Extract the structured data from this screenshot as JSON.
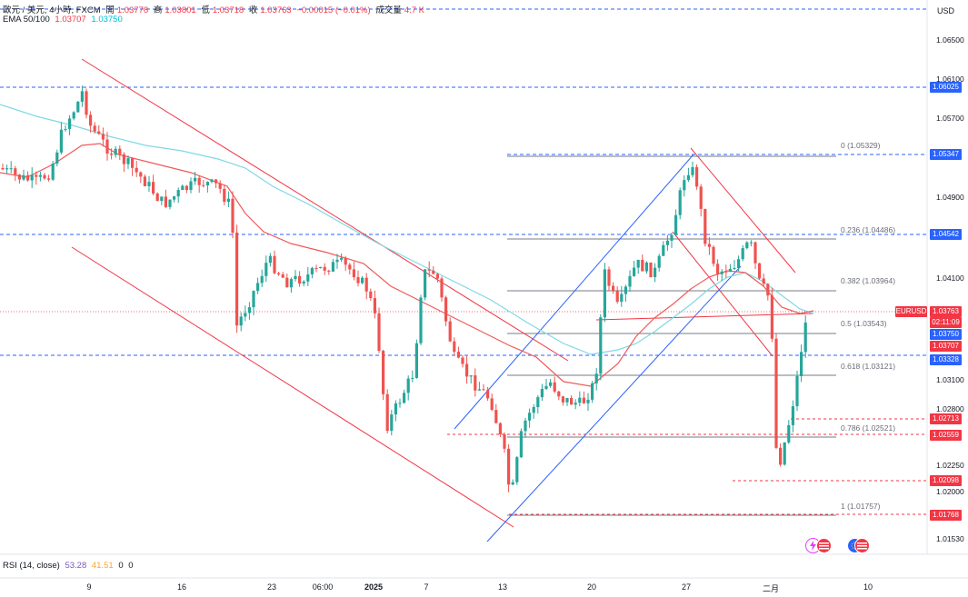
{
  "header": {
    "symbol": "歐元 / 美元, 4小時, FXCM",
    "open_label": "開",
    "open_value": "1.03778",
    "high_label": "高",
    "high_value": "1.03801",
    "low_label": "低",
    "low_value": "1.03718",
    "close_label": "收",
    "close_value": "1.03763",
    "change_value": "−0.00015 (−0.01%)",
    "volume_label": "成交量",
    "volume_value": "4.7 K",
    "ema_label": "EMA 50/100",
    "ema_50": "1.03707",
    "ema_100": "1.03750",
    "currency": "USD"
  },
  "price_axis": {
    "labels": [
      "1.06500",
      "1.06100",
      "1.05700",
      "1.04900",
      "1.04100",
      "1.03100",
      "1.02800",
      "1.02250",
      "1.02000",
      "1.01530"
    ]
  },
  "price_tags": [
    {
      "label": "1.06025",
      "color": "#2962ff"
    },
    {
      "label": "1.05347",
      "color": "#2962ff"
    },
    {
      "label": "1.04542",
      "color": "#2962ff"
    },
    {
      "label": "EURUSD",
      "color": "#f23645"
    },
    {
      "label": "1.03763",
      "color": "#f23645"
    },
    {
      "label": "02:11:09",
      "color": "#f23645"
    },
    {
      "label": "1.03750",
      "color": "#2962ff"
    },
    {
      "label": "1.03707",
      "color": "#f23645"
    },
    {
      "label": "1.03328",
      "color": "#2962ff"
    },
    {
      "label": "1.02713",
      "color": "#f23645"
    },
    {
      "label": "1.02559",
      "color": "#f23645"
    },
    {
      "label": "1.02098",
      "color": "#f23645"
    },
    {
      "label": "1.01768",
      "color": "#f23645"
    }
  ],
  "fib_levels": [
    {
      "label": "0 (1.05329)"
    },
    {
      "label": "0.236 (1.04486)"
    },
    {
      "label": "0.382 (1.03964)"
    },
    {
      "label": "0.5 (1.03543)"
    },
    {
      "label": "0.618 (1.03121)"
    },
    {
      "label": "0.786 (1.02521)"
    },
    {
      "label": "1 (1.01757)"
    }
  ],
  "rsi": {
    "label": "RSI (14, close)",
    "value1": "53.28",
    "value2": "41.51",
    "value3": "0",
    "value4": "0"
  },
  "time_axis": {
    "labels": [
      "9",
      "16",
      "23",
      "06:00",
      "2025",
      "7",
      "13",
      "20",
      "27",
      "二月",
      "10"
    ]
  },
  "colors": {
    "candle_up": "#26a69a",
    "candle_down": "#ef5350",
    "ema50": "#f05a5a",
    "ema100": "#7fd8e6",
    "blue_line": "#2962ff",
    "red_line": "#f23645"
  }
}
